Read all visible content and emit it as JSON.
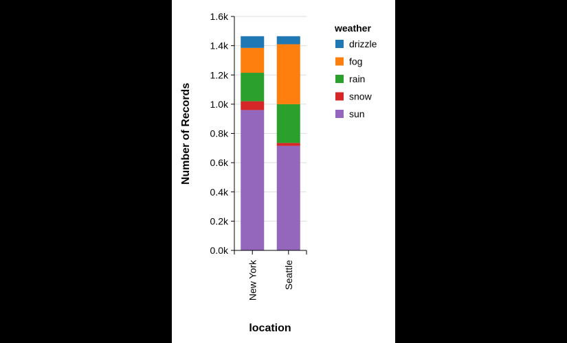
{
  "chart_data": {
    "type": "bar",
    "stacked": true,
    "categories": [
      "New York",
      "Seattle"
    ],
    "xlabel": "location",
    "ylabel": "Number of Records",
    "ylim": [
      0,
      1600
    ],
    "yticks": [
      0,
      200,
      400,
      600,
      800,
      1000,
      1200,
      1400,
      1600
    ],
    "ytick_labels": [
      "0.0k",
      "0.2k",
      "0.4k",
      "0.6k",
      "0.8k",
      "1.0k",
      "1.2k",
      "1.4k",
      "1.6k"
    ],
    "grid": true,
    "legend_title": "weather",
    "legend_position": "right",
    "series": [
      {
        "name": "sun",
        "color": "#9467bd",
        "values": [
          960,
          715
        ]
      },
      {
        "name": "snow",
        "color": "#d62728",
        "values": [
          60,
          20
        ]
      },
      {
        "name": "rain",
        "color": "#2ca02c",
        "values": [
          195,
          265
        ]
      },
      {
        "name": "fog",
        "color": "#ff7f0e",
        "values": [
          170,
          410
        ]
      },
      {
        "name": "drizzle",
        "color": "#1f77b4",
        "values": [
          80,
          55
        ]
      }
    ],
    "legend_order": [
      "drizzle",
      "fog",
      "rain",
      "snow",
      "sun"
    ]
  }
}
